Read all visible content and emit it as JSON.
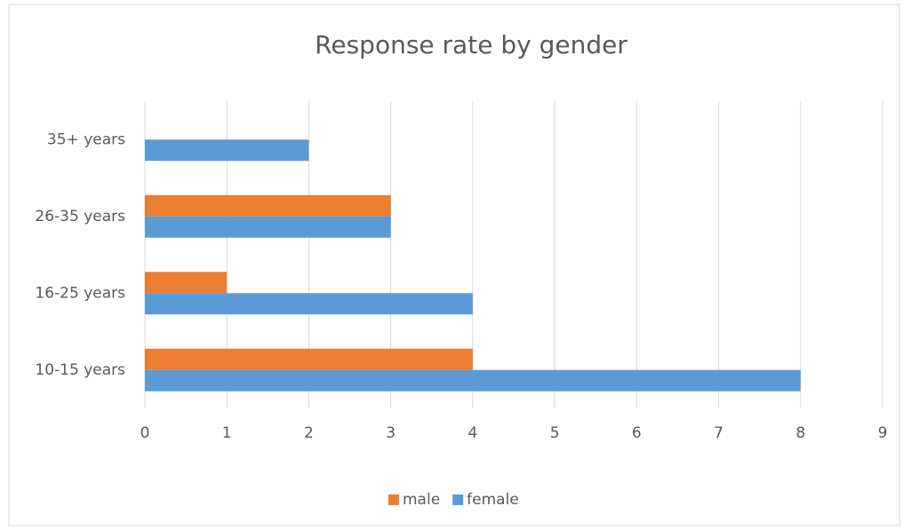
{
  "chart_data": {
    "type": "bar",
    "orientation": "horizontal",
    "title": "Response rate by gender",
    "categories": [
      "10-15 years",
      "16-25 years",
      "26-35 years",
      "35+ years"
    ],
    "series": [
      {
        "name": "male",
        "color": "#ed7d31",
        "values": [
          4,
          1,
          3,
          null
        ]
      },
      {
        "name": "female",
        "color": "#5b9bd5",
        "values": [
          8,
          4,
          3,
          2
        ]
      }
    ],
    "xlim": [
      0,
      9
    ],
    "xticks": [
      0,
      1,
      2,
      3,
      4,
      5,
      6,
      7,
      8,
      9
    ],
    "grid": true,
    "legend": "bottom"
  }
}
